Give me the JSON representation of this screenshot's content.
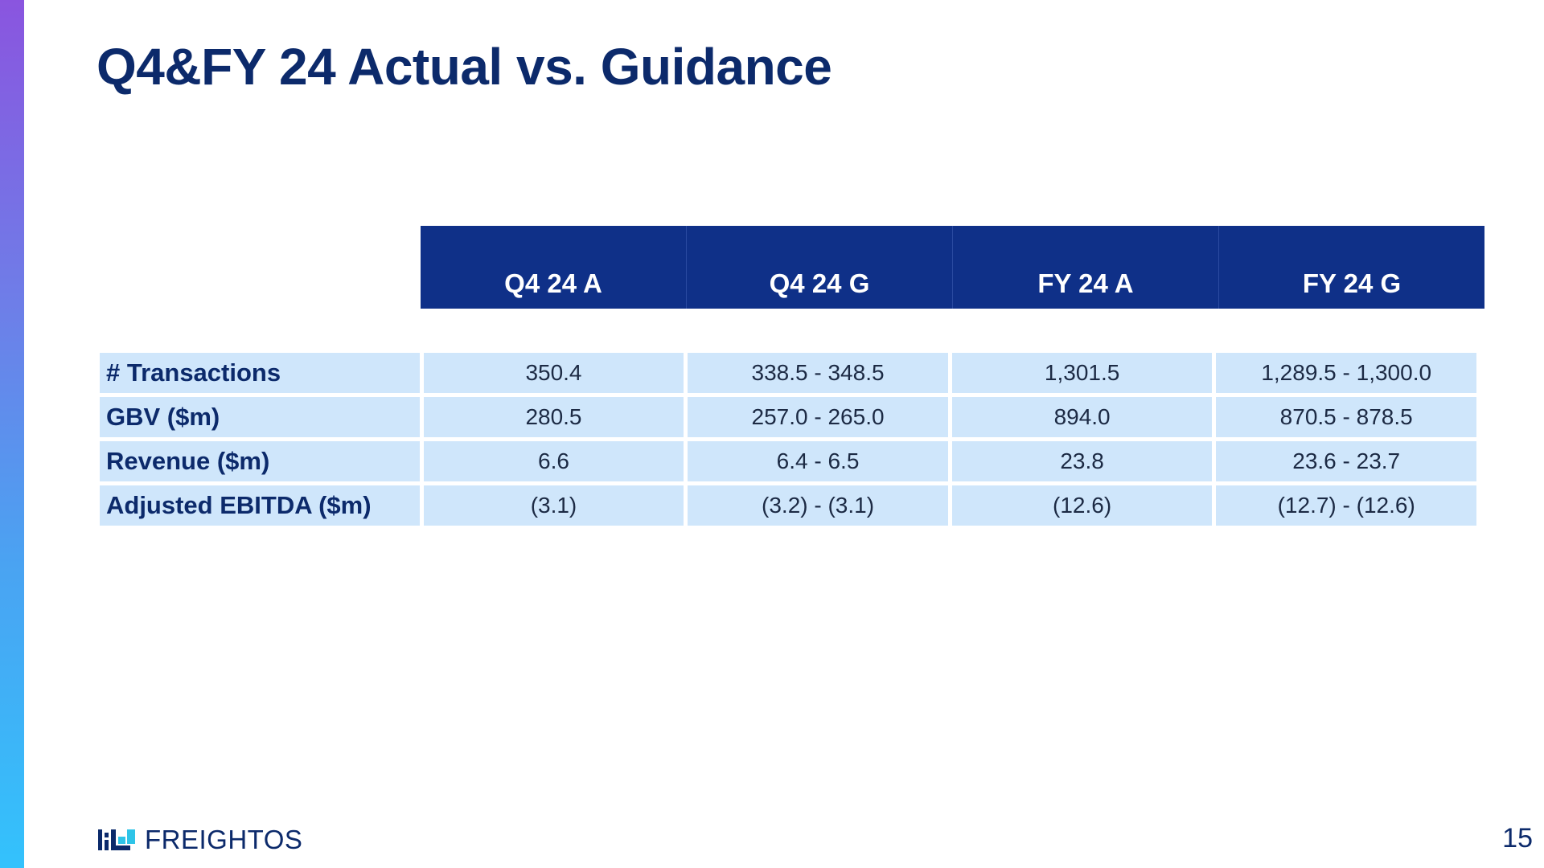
{
  "slide": {
    "title": "Q4&FY 24 Actual vs. Guidance",
    "page_number": "15"
  },
  "colors": {
    "header_bg": "#0f3088",
    "cell_bg": "#cfe6fb",
    "title_text": "#0c2a6b",
    "accent_gradient_top": "#8a55df",
    "accent_gradient_bottom": "#33c2fc"
  },
  "table": {
    "headers": [
      "Q4 24 A",
      "Q4 24 G",
      "FY 24 A",
      "FY 24 G"
    ],
    "rows": [
      {
        "label": "# Transactions",
        "values": [
          "350.4",
          "338.5 - 348.5",
          "1,301.5",
          "1,289.5 - 1,300.0"
        ]
      },
      {
        "label": "GBV ($m)",
        "values": [
          "280.5",
          "257.0 - 265.0",
          "894.0",
          "870.5 - 878.5"
        ]
      },
      {
        "label": "Revenue ($m)",
        "values": [
          "6.6",
          "6.4 - 6.5",
          "23.8",
          "23.6 - 23.7"
        ]
      },
      {
        "label": "Adjusted EBITDA ($m)",
        "values": [
          "(3.1)",
          "(3.2) -  (3.1)",
          "(12.6)",
          "(12.7) - (12.6)"
        ]
      }
    ]
  },
  "footer": {
    "logo_text": "FREIGHTOS",
    "logo_icon": "freightos-logo-icon"
  }
}
